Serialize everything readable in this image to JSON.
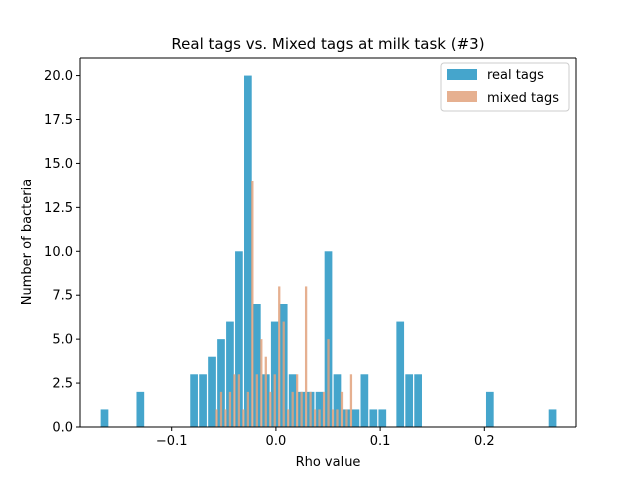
{
  "chart_data": {
    "type": "bar",
    "title": "Real tags vs. Mixed tags at milk task (#3)",
    "xlabel": "Rho value",
    "ylabel": "Number of bacteria",
    "xlim": [
      -0.188,
      0.288
    ],
    "ylim": [
      0,
      21
    ],
    "xticks": [
      -0.1,
      0.0,
      0.1,
      0.2
    ],
    "xtick_labels": [
      "−0.1",
      "0.0",
      "0.1",
      "0.2"
    ],
    "yticks": [
      0,
      2.5,
      5,
      7.5,
      10,
      12.5,
      15,
      17.5,
      20
    ],
    "ytick_labels": [
      "0.0",
      "2.5",
      "5.0",
      "7.5",
      "10.0",
      "12.5",
      "15.0",
      "17.5",
      "20.0"
    ],
    "grid": false,
    "legend_position": "top-right",
    "series": [
      {
        "name": "real tags",
        "color": "#45a5cc",
        "bin_width": 0.0086,
        "bar_width": 0.0074,
        "points": [
          {
            "x": -0.1645,
            "y": 1
          },
          {
            "x": -0.1301,
            "y": 2
          },
          {
            "x": -0.0785,
            "y": 3
          },
          {
            "x": -0.0699,
            "y": 3
          },
          {
            "x": -0.0613,
            "y": 4
          },
          {
            "x": -0.0527,
            "y": 5
          },
          {
            "x": -0.0441,
            "y": 6
          },
          {
            "x": -0.0355,
            "y": 10
          },
          {
            "x": -0.0269,
            "y": 20
          },
          {
            "x": -0.0183,
            "y": 7
          },
          {
            "x": -0.0097,
            "y": 3
          },
          {
            "x": -0.0011,
            "y": 6
          },
          {
            "x": 0.0075,
            "y": 7
          },
          {
            "x": 0.0161,
            "y": 3
          },
          {
            "x": 0.0247,
            "y": 2
          },
          {
            "x": 0.0333,
            "y": 2
          },
          {
            "x": 0.0419,
            "y": 2
          },
          {
            "x": 0.0505,
            "y": 10
          },
          {
            "x": 0.0591,
            "y": 3
          },
          {
            "x": 0.0677,
            "y": 1
          },
          {
            "x": 0.0763,
            "y": 1
          },
          {
            "x": 0.0849,
            "y": 3
          },
          {
            "x": 0.0935,
            "y": 1
          },
          {
            "x": 0.1021,
            "y": 1
          },
          {
            "x": 0.1193,
            "y": 6
          },
          {
            "x": 0.1279,
            "y": 3
          },
          {
            "x": 0.1365,
            "y": 3
          },
          {
            "x": 0.2053,
            "y": 2
          },
          {
            "x": 0.2655,
            "y": 1
          }
        ]
      },
      {
        "name": "mixed tags",
        "color": "#e2a27c",
        "bin_width": 0.0043,
        "bar_width": 0.0022,
        "points": [
          {
            "x": -0.057,
            "y": 1
          },
          {
            "x": -0.0527,
            "y": 2
          },
          {
            "x": -0.0484,
            "y": 1
          },
          {
            "x": -0.0441,
            "y": 2
          },
          {
            "x": -0.0398,
            "y": 3
          },
          {
            "x": -0.0355,
            "y": 3
          },
          {
            "x": -0.0312,
            "y": 1
          },
          {
            "x": -0.0269,
            "y": 2
          },
          {
            "x": -0.0226,
            "y": 14
          },
          {
            "x": -0.0183,
            "y": 3
          },
          {
            "x": -0.014,
            "y": 5
          },
          {
            "x": -0.0097,
            "y": 4
          },
          {
            "x": -0.0054,
            "y": 2
          },
          {
            "x": -0.0011,
            "y": 3
          },
          {
            "x": 0.0032,
            "y": 8
          },
          {
            "x": 0.0075,
            "y": 6
          },
          {
            "x": 0.0118,
            "y": 1
          },
          {
            "x": 0.0161,
            "y": 2
          },
          {
            "x": 0.0204,
            "y": 3
          },
          {
            "x": 0.0247,
            "y": 2
          },
          {
            "x": 0.029,
            "y": 8
          },
          {
            "x": 0.0333,
            "y": 2
          },
          {
            "x": 0.0376,
            "y": 1
          },
          {
            "x": 0.0419,
            "y": 1
          },
          {
            "x": 0.0462,
            "y": 2
          },
          {
            "x": 0.0505,
            "y": 5
          },
          {
            "x": 0.0548,
            "y": 1
          },
          {
            "x": 0.0591,
            "y": 1
          },
          {
            "x": 0.0634,
            "y": 2
          },
          {
            "x": 0.0677,
            "y": 1
          },
          {
            "x": 0.072,
            "y": 3
          }
        ]
      }
    ]
  }
}
